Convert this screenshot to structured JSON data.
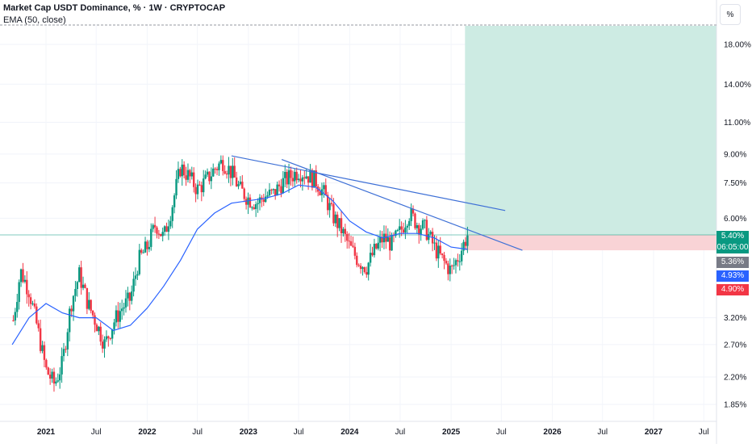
{
  "header": {
    "title": "Market Cap USDT Dominance, % · 1W · CRYPTOCAP",
    "indicator": "EMA (50, close)",
    "scale_button": "%"
  },
  "price_badges": {
    "current": {
      "value": "5.40%",
      "countdown": "06:05:00",
      "color": "#089981"
    },
    "prev_close": {
      "value": "5.36%",
      "color": "#787b86"
    },
    "ema": {
      "value": "4.93%",
      "color": "#2962ff"
    },
    "stop": {
      "value": "4.90%",
      "color": "#f23645"
    }
  },
  "colors": {
    "up": "#089981",
    "down": "#f23645",
    "ema": "#2962ff",
    "trendline": "#3d6fd6",
    "profit_zone": "#cdebe3",
    "loss_zone": "#f9d3d6"
  },
  "chart_data": {
    "type": "candlestick",
    "title": "Market Cap USDT Dominance, % · 1W · CRYPTOCAP",
    "y_scale": "log",
    "y_ticks": [
      "18.00%",
      "14.00%",
      "11.00%",
      "9.00%",
      "7.50%",
      "6.00%",
      "3.20%",
      "2.70%",
      "2.20%",
      "1.85%"
    ],
    "y_tick_values": [
      18.0,
      14.0,
      11.0,
      9.0,
      7.5,
      6.0,
      3.2,
      2.7,
      2.2,
      1.85
    ],
    "x_ticks": [
      "2021",
      "Jul",
      "2022",
      "Jul",
      "2023",
      "Jul",
      "2024",
      "Jul",
      "2025",
      "Jul",
      "2026",
      "Jul",
      "2027",
      "Jul"
    ],
    "x_tick_dates": [
      "2021-01-01",
      "2021-07-01",
      "2022-01-01",
      "2022-07-01",
      "2023-01-01",
      "2023-07-01",
      "2024-01-01",
      "2024-07-01",
      "2025-01-01",
      "2025-07-01",
      "2026-01-01",
      "2026-07-01",
      "2027-01-01",
      "2027-07-01"
    ],
    "series": [
      {
        "kind": "close",
        "dates": [
          "2020-09-01",
          "2020-10-01",
          "2020-11-01",
          "2020-12-01",
          "2021-01-01",
          "2021-02-01",
          "2021-03-01",
          "2021-04-01",
          "2021-05-01",
          "2021-06-01",
          "2021-07-01",
          "2021-08-01",
          "2021-09-01",
          "2021-10-01",
          "2021-11-01",
          "2021-12-01",
          "2022-01-01",
          "2022-02-01",
          "2022-03-01",
          "2022-04-01",
          "2022-05-01",
          "2022-06-01",
          "2022-07-01",
          "2022-08-01",
          "2022-09-01",
          "2022-10-01",
          "2022-11-01",
          "2022-12-01",
          "2023-01-01",
          "2023-02-01",
          "2023-03-01",
          "2023-04-01",
          "2023-05-01",
          "2023-06-01",
          "2023-07-01",
          "2023-08-01",
          "2023-09-01",
          "2023-10-01",
          "2023-11-01",
          "2023-12-01",
          "2024-01-01",
          "2024-02-01",
          "2024-03-01",
          "2024-04-01",
          "2024-05-01",
          "2024-06-01",
          "2024-07-01",
          "2024-08-01",
          "2024-09-01",
          "2024-10-01",
          "2024-11-01",
          "2024-12-01",
          "2025-01-01",
          "2025-02-01",
          "2025-03-01"
        ],
        "values": [
          3.0,
          4.3,
          3.8,
          3.0,
          2.3,
          2.1,
          2.4,
          3.5,
          4.2,
          3.5,
          3.1,
          2.7,
          3.1,
          3.4,
          3.6,
          4.6,
          5.0,
          5.8,
          5.3,
          6.5,
          8.3,
          7.8,
          7.2,
          7.6,
          8.2,
          8.6,
          8.0,
          7.2,
          6.8,
          6.6,
          6.9,
          7.0,
          7.5,
          7.8,
          8.1,
          7.9,
          7.6,
          7.0,
          6.1,
          5.6,
          5.0,
          4.6,
          4.4,
          4.9,
          5.3,
          5.1,
          5.5,
          6.2,
          5.8,
          5.6,
          5.0,
          4.6,
          4.3,
          4.8,
          5.4
        ]
      },
      {
        "kind": "ema",
        "name": "EMA (50, close)",
        "dates": [
          "2020-09-01",
          "2020-11-01",
          "2021-01-01",
          "2021-03-01",
          "2021-05-01",
          "2021-07-01",
          "2021-09-01",
          "2021-11-01",
          "2022-01-01",
          "2022-03-01",
          "2022-05-01",
          "2022-07-01",
          "2022-09-01",
          "2022-11-01",
          "2023-01-01",
          "2023-03-01",
          "2023-05-01",
          "2023-07-01",
          "2023-09-01",
          "2023-11-01",
          "2024-01-01",
          "2024-03-01",
          "2024-05-01",
          "2024-07-01",
          "2024-09-01",
          "2024-11-01",
          "2025-01-01",
          "2025-03-01"
        ],
        "values": [
          2.7,
          3.2,
          3.5,
          3.3,
          3.2,
          3.2,
          2.95,
          3.05,
          3.4,
          3.9,
          4.6,
          5.6,
          6.2,
          6.6,
          6.7,
          6.8,
          7.0,
          7.4,
          7.3,
          6.7,
          5.9,
          5.5,
          5.3,
          5.45,
          5.45,
          5.3,
          5.0,
          4.93
        ]
      }
    ],
    "trendlines": [
      {
        "from": [
          "2022-11-01",
          8.9
        ],
        "to": [
          "2025-07-15",
          6.3
        ]
      },
      {
        "from": [
          "2023-05-01",
          8.7
        ],
        "to": [
          "2025-09-15",
          4.9
        ]
      }
    ],
    "position": {
      "start": "2025-02-20",
      "entry": 5.4,
      "stop": 4.9,
      "target": 22.0,
      "profit_color": "#cdebe3",
      "loss_color": "#f9d3d6"
    },
    "badges": [
      "5.40%",
      "06:05:00",
      "5.36%",
      "4.93%",
      "4.90%"
    ]
  }
}
